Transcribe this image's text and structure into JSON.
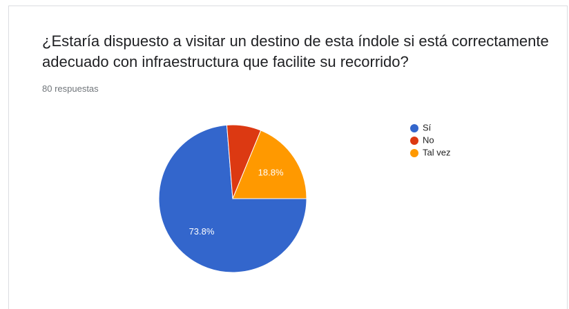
{
  "chart_data": {
    "type": "pie",
    "title": "¿Estaría dispuesto a visitar un destino de esta índole si está correctamente adecuado con infraestructura que facilite su recorrido?",
    "subtitle": "80 respuestas",
    "categories": [
      "Sí",
      "No",
      "Tal vez"
    ],
    "values": [
      73.8,
      7.5,
      18.8
    ],
    "value_labels": [
      "73.8%",
      null,
      "18.8%"
    ],
    "colors": [
      "#3366cc",
      "#dc3912",
      "#ff9900"
    ],
    "legend": "right"
  }
}
